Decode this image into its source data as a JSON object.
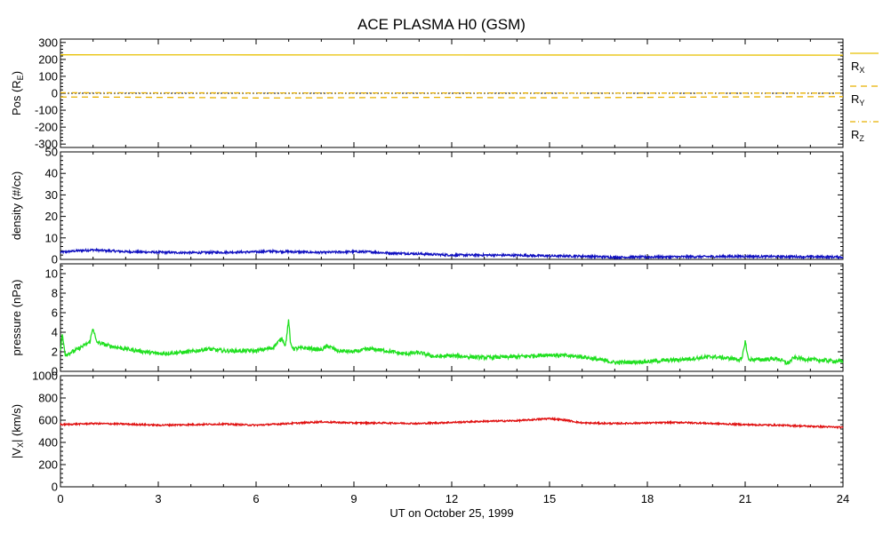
{
  "title": "ACE PLASMA H0 (GSM)",
  "xlabel": "UT on October 25, 1999",
  "chart_data": [
    {
      "type": "line",
      "panel": "position",
      "ylabel": "Pos (R",
      "ylabel_sub": "E",
      "ylabel_suffix": ")",
      "ylim": [
        -320,
        320
      ],
      "yticks": [
        300,
        200,
        100,
        0,
        -100,
        -200,
        -300
      ],
      "xlim": [
        0,
        24
      ],
      "xticks": [
        0,
        3,
        6,
        9,
        12,
        15,
        18,
        21,
        24
      ],
      "zero_line": true,
      "series": [
        {
          "name": "R",
          "sub": "X",
          "style": "solid",
          "color": "#e8c000",
          "x": [
            0,
            6,
            12,
            18,
            24
          ],
          "y": [
            227,
            226.5,
            226,
            225.5,
            225
          ]
        },
        {
          "name": "R",
          "sub": "Y",
          "style": "dashed",
          "color": "#e8b000",
          "x": [
            0,
            2,
            4,
            6,
            8,
            10,
            12,
            14,
            16,
            18,
            20,
            22,
            24
          ],
          "y": [
            -22,
            -23,
            -25,
            -28,
            -27,
            -25,
            -24,
            -27,
            -26,
            -24,
            -22,
            -21,
            -20
          ]
        },
        {
          "name": "R",
          "sub": "Z",
          "style": "dashdot",
          "color": "#e8b000",
          "x": [
            0,
            6,
            12,
            18,
            24
          ],
          "y": [
            3,
            2,
            2,
            1,
            1
          ]
        }
      ]
    },
    {
      "type": "line",
      "panel": "density",
      "ylabel": "density (#/cc)",
      "ylim": [
        0,
        50
      ],
      "yticks": [
        50,
        40,
        30,
        20,
        10,
        0
      ],
      "xlim": [
        0,
        24
      ],
      "xticks": [
        0,
        3,
        6,
        9,
        12,
        15,
        18,
        21,
        24
      ],
      "series": [
        {
          "color": "#1010c0",
          "noise": 0.5,
          "x": [
            0,
            0.5,
            1,
            1.5,
            2,
            3,
            4,
            5,
            6,
            6.5,
            7,
            8,
            9,
            9.5,
            10,
            11,
            12,
            13,
            14,
            15,
            16,
            17,
            18,
            19,
            20,
            21,
            22,
            23,
            24
          ],
          "y": [
            3.3,
            4.0,
            4.4,
            4.0,
            3.6,
            3.3,
            3.1,
            3.3,
            3.5,
            3.8,
            3.6,
            3.2,
            3.6,
            3.5,
            3.0,
            2.6,
            2.0,
            2.0,
            1.9,
            1.6,
            1.5,
            1.0,
            1.1,
            1.2,
            1.3,
            1.4,
            1.3,
            1.2,
            1.1
          ]
        }
      ]
    },
    {
      "type": "line",
      "panel": "pressure",
      "ylabel": "pressure (nPa)",
      "ylim": [
        0,
        11
      ],
      "yticks": [
        10,
        8,
        6,
        4,
        2,
        0
      ],
      "xlim": [
        0,
        24
      ],
      "xticks": [
        0,
        3,
        6,
        9,
        12,
        15,
        18,
        21,
        24
      ],
      "series": [
        {
          "color": "#20e020",
          "noise": 0.2,
          "x": [
            0,
            0.05,
            0.15,
            0.5,
            0.9,
            1.0,
            1.1,
            1.5,
            2,
            3,
            4,
            4.5,
            5,
            6,
            6.5,
            6.8,
            6.9,
            7.0,
            7.05,
            7.15,
            7.5,
            8,
            8.2,
            8.5,
            9,
            9.5,
            10,
            10.5,
            11,
            11.5,
            12,
            13,
            14,
            15,
            16,
            16.5,
            17,
            18,
            19,
            20,
            20.9,
            21.0,
            21.1,
            21.5,
            22,
            22.3,
            22.5,
            23,
            24
          ],
          "y": [
            2.0,
            3.8,
            1.7,
            2.2,
            3.0,
            4.5,
            3.0,
            2.6,
            2.3,
            1.8,
            2.0,
            2.3,
            2.1,
            2.1,
            2.4,
            3.4,
            2.6,
            5.3,
            2.9,
            2.3,
            2.4,
            2.2,
            2.6,
            2.1,
            2.0,
            2.3,
            2.1,
            1.8,
            1.9,
            1.5,
            1.6,
            1.4,
            1.5,
            1.7,
            1.5,
            1.2,
            0.9,
            1.0,
            1.2,
            1.5,
            1.2,
            3.1,
            1.2,
            1.2,
            1.3,
            0.8,
            1.4,
            1.2,
            1.0
          ]
        }
      ]
    },
    {
      "type": "line",
      "panel": "velocity",
      "ylabel": "|V",
      "ylabel_sub": "X",
      "ylabel_suffix": "| (km/s)",
      "ylim": [
        0,
        1000
      ],
      "yticks": [
        1000,
        800,
        600,
        400,
        200,
        0
      ],
      "xlim": [
        0,
        24
      ],
      "xticks": [
        0,
        3,
        6,
        9,
        12,
        15,
        18,
        21,
        24
      ],
      "series": [
        {
          "color": "#e01010",
          "noise": 7,
          "x": [
            0,
            1,
            2,
            3,
            4,
            5,
            6,
            7,
            8,
            9,
            10,
            11,
            12,
            13,
            14,
            15,
            15.5,
            16,
            17,
            18,
            19,
            20,
            21,
            22,
            23,
            24
          ],
          "y": [
            560,
            570,
            565,
            555,
            560,
            565,
            555,
            570,
            585,
            575,
            575,
            570,
            580,
            590,
            595,
            615,
            600,
            575,
            570,
            575,
            580,
            570,
            560,
            555,
            545,
            535
          ]
        }
      ]
    }
  ]
}
